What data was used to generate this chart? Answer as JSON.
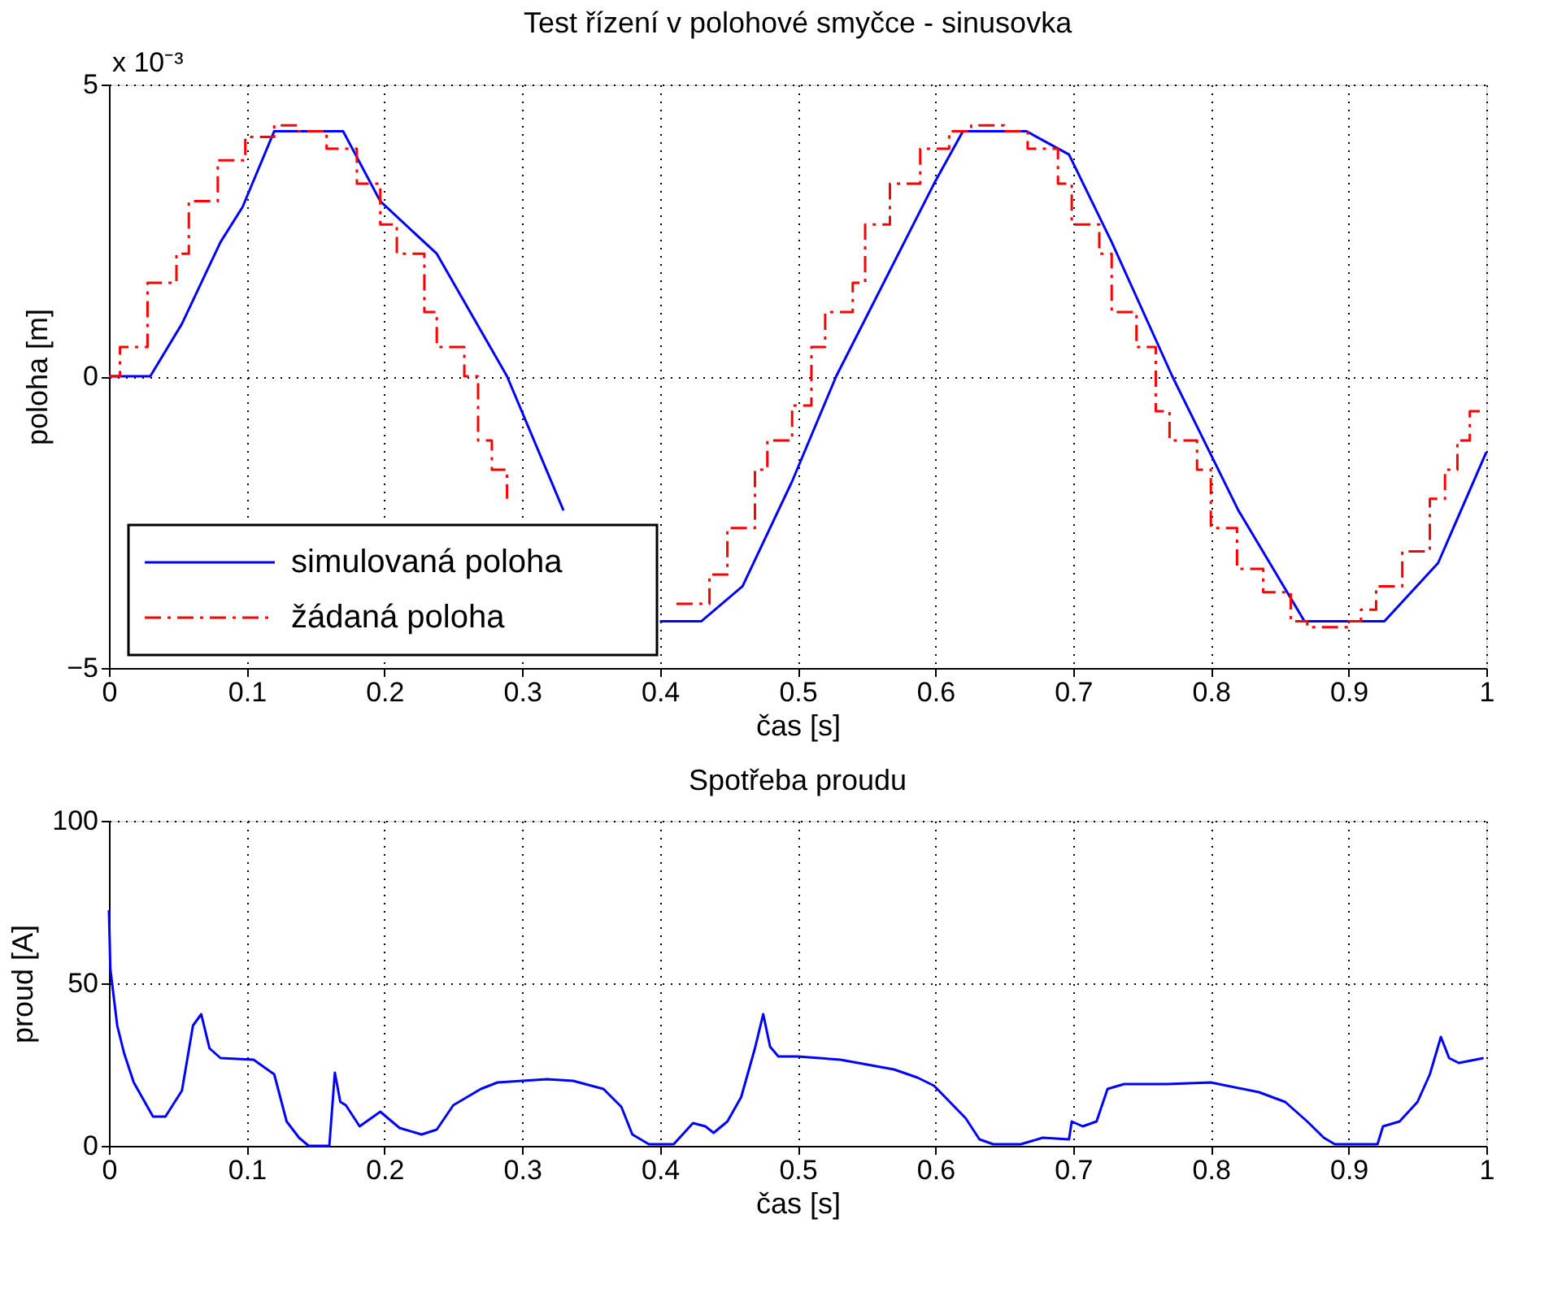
{
  "chart_data": [
    {
      "type": "line",
      "title": "Test řízení v polohové smyčce - sinusovka",
      "xlabel": "čas [s]",
      "ylabel": "poloha [m]",
      "annotations": [
        "x 10⁻³"
      ],
      "xlim": [
        0,
        1
      ],
      "xticks": [
        0,
        0.1,
        0.2,
        0.3,
        0.4,
        0.5,
        0.6,
        0.7,
        0.8,
        0.9,
        1
      ],
      "ylim": [
        -5,
        5
      ],
      "yticks": [
        -5,
        0,
        5
      ],
      "grid": true,
      "legend": "bottom left",
      "series": [
        {
          "name": "simulovaná poloha",
          "type": "line",
          "color": "#0000ff",
          "line_style": "solid",
          "x": [
            0,
            0.03,
            0.053,
            0.081,
            0.097,
            0.12,
            0.17,
            0.197,
            0.238,
            0.289,
            0.33,
            0.36,
            0.4,
            0.43,
            0.46,
            0.496,
            0.528,
            0.599,
            0.62,
            0.666,
            0.697,
            0.728,
            0.772,
            0.82,
            0.868,
            0.926,
            0.965,
            1.0
          ],
          "values": [
            0,
            0,
            0.9,
            2.3,
            2.9,
            4.2,
            4.2,
            3.0,
            2.1,
            0,
            -2.3,
            null,
            -4.2,
            -4.2,
            -3.6,
            -1.8,
            0,
            3.3,
            4.2,
            4.2,
            3.8,
            2.3,
            0,
            -2.3,
            -4.2,
            -4.2,
            -3.2,
            -1.3
          ]
        },
        {
          "name": "žádaná poloha",
          "type": "step",
          "color": "#ff0000",
          "line_style": "dashdot",
          "x": [
            0,
            0.008,
            0.028,
            0.049,
            0.058,
            0.079,
            0.099,
            0.12,
            0.137,
            0.158,
            0.18,
            0.197,
            0.209,
            0.229,
            0.238,
            0.258,
            0.268,
            0.278,
            0.289,
            0.33,
            0.412,
            0.436,
            0.449,
            0.469,
            0.478,
            0.496,
            0.51,
            0.52,
            0.54,
            0.549,
            0.567,
            0.589,
            0.61,
            0.626,
            0.65,
            0.667,
            0.689,
            0.699,
            0.719,
            0.728,
            0.746,
            0.76,
            0.77,
            0.79,
            0.8,
            0.819,
            0.838,
            0.858,
            0.87,
            0.9,
            0.909,
            0.92,
            0.939,
            0.959,
            0.97,
            0.979,
            0.988,
            1.0
          ],
          "values": [
            0,
            0.5,
            1.6,
            2.1,
            3.0,
            3.7,
            4.1,
            4.3,
            4.2,
            3.9,
            3.3,
            2.6,
            2.1,
            1.1,
            0.5,
            0,
            -1.1,
            -1.6,
            -2.1,
            null,
            -3.9,
            -3.4,
            -2.6,
            -1.6,
            -1.1,
            -0.5,
            0.5,
            1.1,
            1.6,
            2.6,
            3.3,
            3.9,
            4.2,
            4.3,
            4.2,
            3.9,
            3.3,
            2.6,
            2.1,
            1.1,
            0.5,
            -0.6,
            -1.1,
            -1.6,
            -2.6,
            -3.3,
            -3.7,
            -4.2,
            -4.3,
            -4.2,
            -4.0,
            -3.6,
            -3.0,
            -2.1,
            -1.6,
            -1.1,
            -0.6,
            -0.6
          ]
        }
      ]
    },
    {
      "type": "line",
      "title": "Spotřeba proudu",
      "xlabel": "čas [s]",
      "ylabel": "proud [A]",
      "xlim": [
        0,
        1
      ],
      "xticks": [
        0,
        0.1,
        0.2,
        0.3,
        0.4,
        0.5,
        0.6,
        0.7,
        0.8,
        0.9,
        1
      ],
      "ylim": [
        0,
        100
      ],
      "yticks": [
        0,
        50,
        100
      ],
      "grid": true,
      "series": [
        {
          "color": "#0000ff",
          "x": [
            0,
            0.001,
            0.006,
            0.011,
            0.018,
            0.032,
            0.041,
            0.053,
            0.061,
            0.067,
            0.073,
            0.081,
            0.105,
            0.12,
            0.129,
            0.138,
            0.145,
            0.16,
            0.164,
            0.168,
            0.172,
            0.182,
            0.197,
            0.211,
            0.227,
            0.238,
            0.25,
            0.27,
            0.282,
            0.318,
            0.337,
            0.359,
            0.372,
            0.38,
            0.392,
            0.41,
            0.424,
            0.433,
            0.439,
            0.449,
            0.459,
            0.469,
            0.475,
            0.48,
            0.486,
            0.5,
            0.531,
            0.57,
            0.587,
            0.599,
            0.622,
            0.632,
            0.642,
            0.662,
            0.678,
            0.697,
            0.699,
            0.707,
            0.717,
            0.725,
            0.737,
            0.768,
            0.8,
            0.835,
            0.854,
            0.87,
            0.882,
            0.89,
            0.921,
            0.925,
            0.937,
            0.95,
            0.959,
            0.967,
            0.973,
            0.98,
            0.998
          ],
          "values": [
            72.5,
            54.5,
            37,
            28.5,
            19.5,
            9,
            9,
            17,
            37,
            40.5,
            30,
            27,
            26.5,
            22,
            7.5,
            2.5,
            0,
            0,
            22.5,
            13.5,
            12.5,
            6,
            10.5,
            5.5,
            3.5,
            5,
            12.5,
            17.5,
            19.5,
            20.5,
            20,
            17.5,
            12,
            3.5,
            0.5,
            0.5,
            7,
            6,
            4,
            7.5,
            15,
            30,
            40.5,
            30.5,
            27.5,
            27.5,
            26.5,
            23.5,
            21,
            18.5,
            8.5,
            2,
            0.5,
            0.5,
            2.5,
            2,
            7.5,
            6,
            7.5,
            17.5,
            19,
            19,
            19.5,
            16.5,
            13.5,
            7.5,
            2.5,
            0.5,
            0.5,
            6,
            7.5,
            13.5,
            22,
            33.5,
            27,
            25.5,
            27
          ]
        }
      ]
    }
  ]
}
